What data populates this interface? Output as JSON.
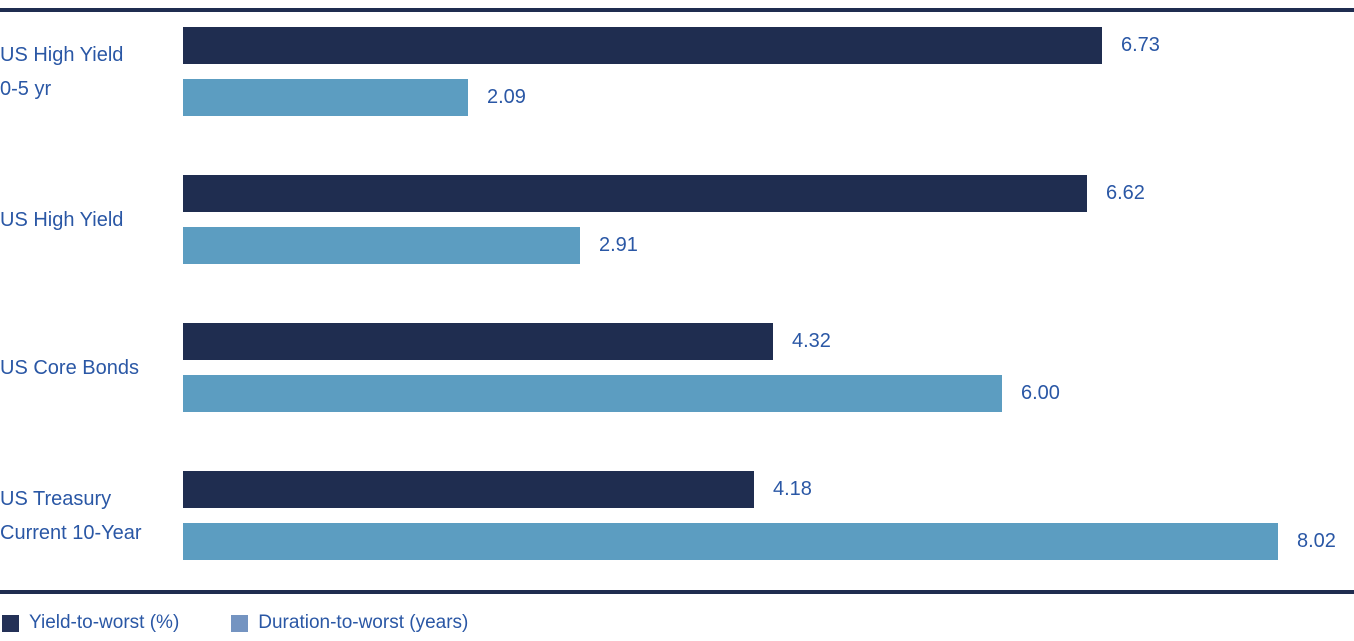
{
  "chart_data": {
    "type": "bar",
    "orientation": "horizontal",
    "title": "",
    "xlabel": "",
    "ylabel": "",
    "grid": false,
    "legend_position": "bottom-left",
    "xlim": [
      0,
      8.6
    ],
    "categories": [
      {
        "lines": [
          "US High Yield",
          "0-5 yr"
        ]
      },
      {
        "lines": [
          "US High Yield"
        ]
      },
      {
        "lines": [
          "US Core Bonds"
        ]
      },
      {
        "lines": [
          "US Treasury",
          "Current 10-Year"
        ]
      }
    ],
    "series": [
      {
        "name": "Yield-to-worst (%)",
        "color": "#1F2D50",
        "legend_color": "#243157",
        "values": [
          6.73,
          6.62,
          4.32,
          4.18
        ],
        "value_labels": [
          "6.73",
          "6.62",
          "4.32",
          "4.18"
        ]
      },
      {
        "name": "Duration-to-worst (years)",
        "color": "#5C9DC1",
        "legend_color": "#7494C1",
        "values": [
          2.09,
          2.91,
          6.0,
          8.02
        ],
        "value_labels": [
          "2.09",
          "2.91",
          "6.00",
          "8.02"
        ]
      }
    ],
    "colors": {
      "label_text": "#2A57A5",
      "value_text": "#2A57A5",
      "axis_rule": "#1F2D50",
      "background": "#FFFFFF"
    }
  }
}
